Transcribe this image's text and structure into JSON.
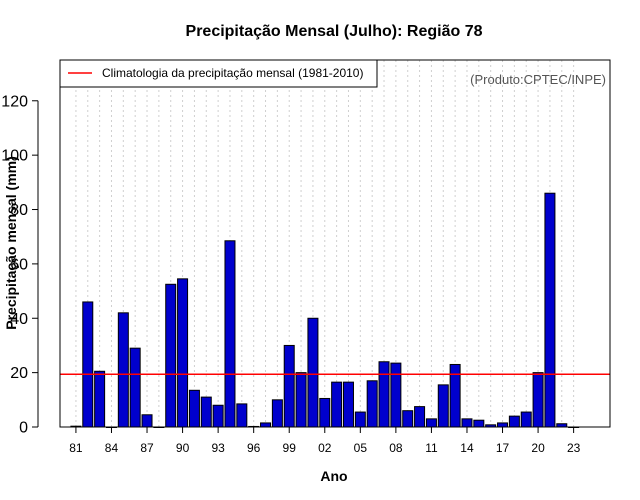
{
  "chart_data": {
    "type": "bar",
    "title": "Precipitação Mensal (Julho): Região 78",
    "xlabel": "Ano",
    "ylabel": "Precipitação mensal (mm)",
    "ylim": [
      0,
      135
    ],
    "yticks": [
      0,
      20,
      40,
      60,
      80,
      100,
      120
    ],
    "grid": "vertical-dotted",
    "years": [
      1981,
      1982,
      1983,
      1984,
      1985,
      1986,
      1987,
      1988,
      1989,
      1990,
      1991,
      1992,
      1993,
      1994,
      1995,
      1996,
      1997,
      1998,
      1999,
      2000,
      2001,
      2002,
      2003,
      2004,
      2005,
      2006,
      2007,
      2008,
      2009,
      2010,
      2011,
      2012,
      2013,
      2014,
      2015,
      2016,
      2017,
      2018,
      2019,
      2020,
      2021,
      2022,
      2023
    ],
    "xtick_labels": [
      "81",
      "84",
      "87",
      "90",
      "93",
      "96",
      "99",
      "02",
      "05",
      "08",
      "11",
      "14",
      "17",
      "20",
      "23"
    ],
    "xtick_years": [
      1981,
      1984,
      1987,
      1990,
      1993,
      1996,
      1999,
      2002,
      2005,
      2008,
      2011,
      2014,
      2017,
      2020,
      2023
    ],
    "values": [
      0.3,
      46,
      20.5,
      0,
      42,
      29,
      4.5,
      0,
      52.5,
      54.5,
      13.5,
      11,
      8,
      68.5,
      8.5,
      0.2,
      1.5,
      10,
      30,
      20,
      40,
      10.5,
      16.5,
      16.5,
      5.5,
      17,
      24,
      23.5,
      6,
      7.5,
      3,
      15.5,
      23,
      3,
      2.5,
      0.8,
      1.5,
      4,
      5.5,
      20,
      86,
      1.2,
      0
    ],
    "climatology": {
      "label": "Climatologia da precipitação mensal (1981-2010)",
      "value": 19.4,
      "color": "#ff0000"
    },
    "legend_position": "top-left",
    "bar_color": "#0000cd"
  },
  "credit": "(Produto:CPTEC/INPE)"
}
